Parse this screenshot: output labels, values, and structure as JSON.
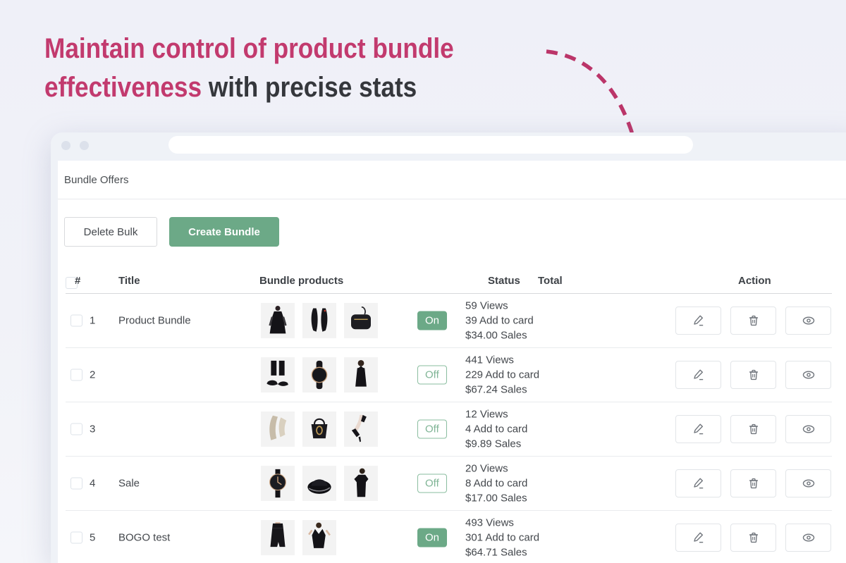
{
  "headline": {
    "line1": "Maintain control of product bundle",
    "line2_pink": "effectiveness",
    "line2_dark": " with precise stats"
  },
  "colors": {
    "accent_pink": "#c23a6e",
    "green": "#6ca987",
    "off_green_border": "#8abd9f",
    "page_background": "#eff0f8",
    "chrome_background": "#eff2f7"
  },
  "browser": {
    "page_title": "Bundle Offers",
    "url_bar_value": ""
  },
  "toolbar": {
    "delete_bulk_label": "Delete Bulk",
    "create_bundle_label": "Create Bundle"
  },
  "table": {
    "headers": {
      "number": "#",
      "title": "Title",
      "products": "Bundle products",
      "status": "Status",
      "total": "Total",
      "action": "Action"
    },
    "rows": [
      {
        "number": "1",
        "title": "Product Bundle",
        "products": [
          "dress",
          "heels",
          "bag"
        ],
        "status": {
          "state": "on",
          "label": "On"
        },
        "total": {
          "views": "59 Views",
          "add_to_card": "39 Add to card",
          "sales": "$34.00 Sales"
        }
      },
      {
        "number": "2",
        "title": "",
        "products": [
          "flats",
          "watch",
          "top"
        ],
        "status": {
          "state": "off",
          "label": "Off"
        },
        "total": {
          "views": "441 Views",
          "add_to_card": "229 Add to card",
          "sales": "$67.24 Sales"
        }
      },
      {
        "number": "3",
        "title": "",
        "products": [
          "scarf",
          "bucket-bag",
          "pumps"
        ],
        "status": {
          "state": "off",
          "label": "Off"
        },
        "total": {
          "views": "12 Views",
          "add_to_card": "4 Add to card",
          "sales": "$9.89 Sales"
        }
      },
      {
        "number": "4",
        "title": "Sale",
        "products": [
          "watch2",
          "hat",
          "dress2"
        ],
        "status": {
          "state": "off",
          "label": "Off"
        },
        "total": {
          "views": "20 Views",
          "add_to_card": "8 Add to card",
          "sales": "$17.00 Sales"
        }
      },
      {
        "number": "5",
        "title": "BOGO test",
        "products": [
          "skirt",
          "dress3"
        ],
        "status": {
          "state": "on",
          "label": "On"
        },
        "total": {
          "views": "493 Views",
          "add_to_card": "301 Add to card",
          "sales": "$64.71 Sales"
        }
      }
    ]
  }
}
